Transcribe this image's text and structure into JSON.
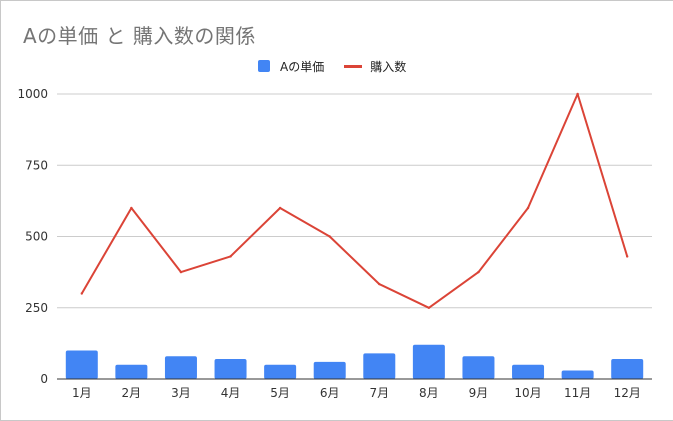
{
  "chart_data": {
    "type": "bar",
    "title": "Aの単価 と 購入数の関係",
    "categories": [
      "1月",
      "2月",
      "3月",
      "4月",
      "5月",
      "6月",
      "7月",
      "8月",
      "9月",
      "10月",
      "11月",
      "12月"
    ],
    "series": [
      {
        "name": "Aの単価",
        "type": "bar",
        "color": "#4285f4",
        "values": [
          100,
          50,
          80,
          70,
          50,
          60,
          90,
          120,
          80,
          50,
          30,
          70
        ]
      },
      {
        "name": "購入数",
        "type": "line",
        "color": "#db4437",
        "values": [
          300,
          600,
          375,
          430,
          600,
          500,
          333,
          250,
          375,
          600,
          1000,
          430
        ]
      }
    ],
    "yticks": [
      "0",
      "250",
      "500",
      "750",
      "1000"
    ],
    "ylim": [
      0,
      1000
    ],
    "grid": true,
    "legend": "top-center"
  }
}
